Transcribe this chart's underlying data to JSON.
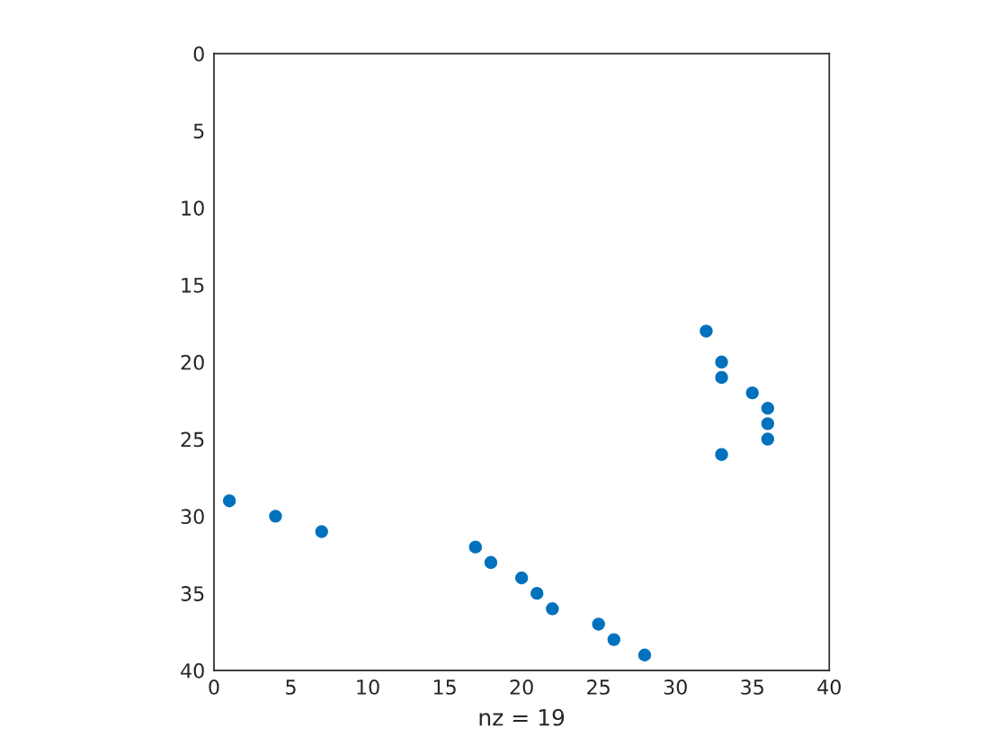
{
  "chart_data": {
    "type": "scatter",
    "xlabel": "nz = 19",
    "x": [
      32,
      33,
      33,
      35,
      36,
      36,
      36,
      33,
      1,
      4,
      7,
      17,
      18,
      20,
      21,
      22,
      25,
      26,
      28
    ],
    "series": [
      {
        "color": "#0072bd",
        "values": [
          18,
          20,
          21,
          22,
          23,
          24,
          25,
          26,
          29,
          30,
          31,
          32,
          33,
          34,
          35,
          36,
          37,
          38,
          39
        ]
      }
    ],
    "xlim": [
      0,
      40
    ],
    "ylim": [
      40,
      0
    ],
    "xticks": [
      0,
      5,
      10,
      15,
      20,
      25,
      30,
      35,
      40
    ],
    "yticks": [
      0,
      5,
      10,
      15,
      20,
      25,
      30,
      35,
      40
    ],
    "marker": "circle",
    "grid": false,
    "legend": false
  }
}
